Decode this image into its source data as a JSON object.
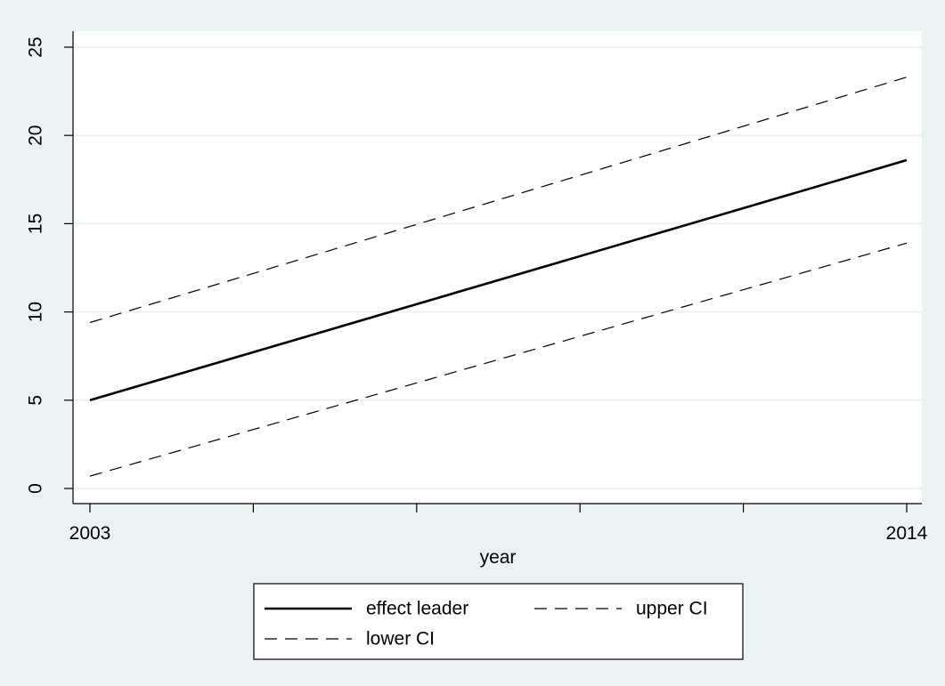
{
  "chart_data": {
    "type": "line",
    "title": "",
    "xlabel": "year",
    "ylabel": "",
    "x": [
      2003,
      2014
    ],
    "xlim": [
      2003,
      2014
    ],
    "ylim": [
      0,
      25
    ],
    "x_ticks": [
      2003,
      2005.2,
      2007.4,
      2009.6,
      2011.8,
      2014
    ],
    "x_tick_labels": [
      "2003",
      "",
      "",
      "",
      "",
      "2014"
    ],
    "y_ticks": [
      0,
      5,
      10,
      15,
      20,
      25
    ],
    "y_tick_labels": [
      "0",
      "5",
      "10",
      "15",
      "20",
      "25"
    ],
    "grid": true,
    "legend_position": "bottom",
    "series": [
      {
        "name": "effect leader",
        "values": [
          5.0,
          18.6
        ],
        "style": "solid",
        "color": "#000000"
      },
      {
        "name": "upper CI",
        "values": [
          9.4,
          23.3
        ],
        "style": "dashed",
        "color": "#000000"
      },
      {
        "name": "lower CI",
        "values": [
          0.7,
          13.9
        ],
        "style": "dashed",
        "color": "#000000"
      }
    ]
  },
  "colors": {
    "outer_background": "#eaf2f3",
    "plot_background": "#ffffff",
    "gridline": "#eaf2f3"
  }
}
